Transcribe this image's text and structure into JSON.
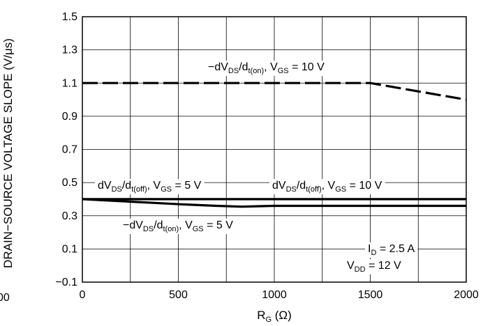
{
  "chart_data": {
    "type": "line",
    "title": "",
    "xlabel": {
      "main": "R",
      "sub": "G",
      "rest": " (Ω)"
    },
    "ylabel": "DRAIN−SOURCE VOLTAGE SLOPE (V/μs)",
    "xlim": [
      0,
      2000
    ],
    "ylim": [
      -0.1,
      1.5
    ],
    "x_ticks": [
      0,
      500,
      1000,
      1500,
      2000
    ],
    "x_tick_labels": [
      "0",
      "500",
      "1000",
      "1500",
      "2000"
    ],
    "y_ticks": [
      -0.1,
      0.1,
      0.3,
      0.5,
      0.7,
      0.9,
      1.1,
      1.3,
      1.5
    ],
    "y_tick_labels": [
      "−0.1",
      "0.1",
      "0.3",
      "0.5",
      "0.7",
      "0.9",
      "1.1",
      "1.3",
      "1.5"
    ],
    "clipped_left_label": "00",
    "grid": true,
    "series": [
      {
        "style": "dashed",
        "x": [
          0,
          500,
          1000,
          1500,
          1700,
          2000
        ],
        "y": [
          1.1,
          1.1,
          1.1,
          1.1,
          1.06,
          1.0
        ]
      },
      {
        "style": "solid",
        "x": [
          0,
          500,
          1000,
          1500,
          2000
        ],
        "y": [
          0.4,
          0.4,
          0.4,
          0.4,
          0.4
        ]
      },
      {
        "style": "solid",
        "x": [
          0,
          250,
          500,
          700,
          830,
          1000,
          1500,
          2000
        ],
        "y": [
          0.4,
          0.385,
          0.37,
          0.36,
          0.355,
          0.36,
          0.36,
          0.36
        ]
      }
    ],
    "annotations": [
      {
        "parts": [
          {
            "t": "−dV"
          },
          {
            "t": "DS",
            "sub": true
          },
          {
            "t": "/d"
          },
          {
            "t": "t(on)",
            "sub": true
          },
          {
            "t": ", V"
          },
          {
            "t": "GS",
            "sub": true
          },
          {
            "t": " = 10 V"
          }
        ]
      },
      {
        "parts": [
          {
            "t": "dV"
          },
          {
            "t": "DS",
            "sub": true
          },
          {
            "t": "/d"
          },
          {
            "t": "t(off)",
            "sub": true
          },
          {
            "t": ", V"
          },
          {
            "t": "GS",
            "sub": true
          },
          {
            "t": " = 5 V"
          }
        ]
      },
      {
        "parts": [
          {
            "t": "dV"
          },
          {
            "t": "DS",
            "sub": true
          },
          {
            "t": "/d"
          },
          {
            "t": "t(off)",
            "sub": true
          },
          {
            "t": ", V"
          },
          {
            "t": "GS",
            "sub": true
          },
          {
            "t": " = 10 V"
          }
        ]
      },
      {
        "parts": [
          {
            "t": "−dV"
          },
          {
            "t": "DS",
            "sub": true
          },
          {
            "t": "/d"
          },
          {
            "t": "t(on)",
            "sub": true
          },
          {
            "t": ", V"
          },
          {
            "t": "GS",
            "sub": true
          },
          {
            "t": " = 5 V"
          }
        ]
      },
      {
        "parts": [
          {
            "t": "I"
          },
          {
            "t": "D",
            "sub": true
          },
          {
            "t": " = 2.5 A"
          }
        ]
      },
      {
        "parts": [
          {
            "t": "V"
          },
          {
            "t": "DD",
            "sub": true
          },
          {
            "t": " = 12 V"
          }
        ]
      }
    ]
  }
}
